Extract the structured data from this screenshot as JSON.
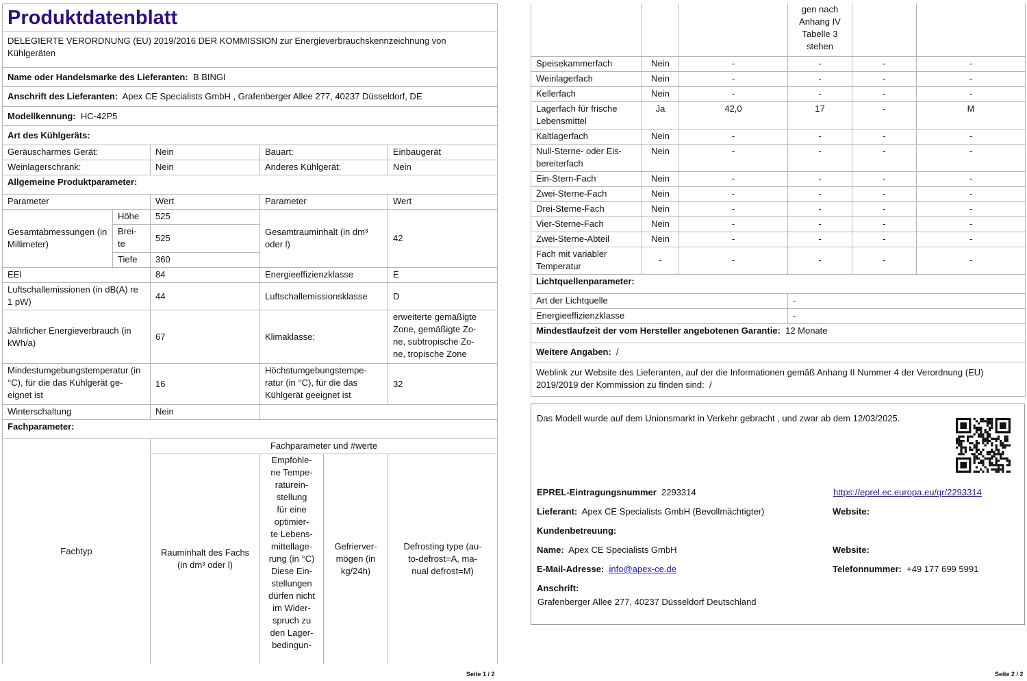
{
  "page1": {
    "title": "Produktdatenblatt",
    "regulation": "DELEGIERTE VERORDNUNG (EU) 2019/2016 DER KOMMISSION zur Energieverbrauchskennzeichnung von Kühlgeräten",
    "supplier_name_label": "Name oder Handelsmarke des Lieferanten:",
    "supplier_name": "B BINGI",
    "supplier_address_label": "Anschrift des Lieferanten:",
    "supplier_address": "Apex CE Specialists GmbH , Grafenberger Allee 277, 40237 Düsseldorf, DE",
    "model_label": "Modellkennung:",
    "model": "HC-42P5",
    "type_heading": "Art des Kühlgeräts:",
    "type_rows": [
      {
        "l1": "Geräuscharmes Gerät:",
        "v1": "Nein",
        "l2": "Bauart:",
        "v2": "Einbaugerät"
      },
      {
        "l1": "Weinlagerschrank:",
        "v1": "Nein",
        "l2": "Anderes Kühlgerät:",
        "v2": "Nein"
      }
    ],
    "general_heading": "Allgemeine Produktparameter:",
    "col_parameter": "Parameter",
    "col_value": "Wert",
    "dimensions_label": "Gesamtabmessungen (in Millimeter)",
    "height_label": "Höhe",
    "height": "525",
    "width_label": "Brei-\nte",
    "width": "525",
    "depth_label": "Tiefe",
    "depth": "360",
    "volume_label": "Gesamtrauminhalt (in dm³ oder l)",
    "volume": "42",
    "eei_label": "EEI",
    "eei": "84",
    "eec_label": "Energieeffizienzklasse",
    "eec": "E",
    "noise_label": "Luftschallemissionen (in dB(A) re 1 pW)",
    "noise": "44",
    "noise_class_label": "Luftschallemissionsklasse",
    "noise_class": "D",
    "energy_label": "Jährlicher Energieverbrauch (in kWh/a)",
    "energy": "67",
    "climate_label": "Klimaklasse:",
    "climate": "erweiterte gemäßigte Zone, gemäßigte Zo-\nne, subtropische Zo-\nne, tropische Zone",
    "min_temp_label": "Mindestumgebungstemperatur (in °C), für die das Kühlgerät ge-\neignet ist",
    "min_temp": "16",
    "max_temp_label": "Höchstumgebungstempe-\nratur (in °C), für die das Kühlgerät geeignet ist",
    "max_temp": "32",
    "winter_label": "Winterschaltung",
    "winter": "Nein",
    "compartment_heading": "Fachparameter:",
    "compartment_group": "Fachparameter und #werte",
    "col_fachtyp": "Fachtyp",
    "col_volume": "Rauminhalt des Fachs (in dm³ oder l)",
    "col_temp": "Empfohle-\nne Tempe-\nraturein-\nstellung\nfür eine\noptimier-\nte Lebens-\nmittellage-\nrung (in °C)\nDiese Ein-\nstellungen\ndürfen nicht\nim Wider-\nspruch zu\nden Lager-\nbedingun-",
    "col_freeze": "Gefrierver-\nmögen (in kg/24h)",
    "col_defrost": "Defrosting type (au-\nto-defrost=A, ma-\nnual defrost=M)",
    "footer": "Seite 1 / 2"
  },
  "page2": {
    "header_continuation": "gen nach\nAnhang IV\nTabelle 3\nstehen",
    "compartments": [
      {
        "name": "Speisekammerfach",
        "present": "Nein",
        "volume": "-",
        "temp": "-",
        "freeze": "-",
        "defrost": "-"
      },
      {
        "name": "Weinlagerfach",
        "present": "Nein",
        "volume": "-",
        "temp": "-",
        "freeze": "-",
        "defrost": "-"
      },
      {
        "name": "Kellerfach",
        "present": "Nein",
        "volume": "-",
        "temp": "-",
        "freeze": "-",
        "defrost": "-"
      },
      {
        "name": "Lagerfach für frische Lebensmittel",
        "present": "Ja",
        "volume": "42,0",
        "temp": "17",
        "freeze": "-",
        "defrost": "M"
      },
      {
        "name": "Kaltlagerfach",
        "present": "Nein",
        "volume": "-",
        "temp": "-",
        "freeze": "-",
        "defrost": "-"
      },
      {
        "name": "Null-Sterne- oder Eis-\nbereiterfach",
        "present": "Nein",
        "volume": "-",
        "temp": "-",
        "freeze": "-",
        "defrost": "-"
      },
      {
        "name": "Ein-Stern-Fach",
        "present": "Nein",
        "volume": "-",
        "temp": "-",
        "freeze": "-",
        "defrost": "-"
      },
      {
        "name": "Zwei-Sterne-Fach",
        "present": "Nein",
        "volume": "-",
        "temp": "-",
        "freeze": "-",
        "defrost": "-"
      },
      {
        "name": "Drei-Sterne-Fach",
        "present": "Nein",
        "volume": "-",
        "temp": "-",
        "freeze": "-",
        "defrost": "-"
      },
      {
        "name": "Vier-Sterne-Fach",
        "present": "Nein",
        "volume": "-",
        "temp": "-",
        "freeze": "-",
        "defrost": "-"
      },
      {
        "name": "Zwei-Sterne-Abteil",
        "present": "Nein",
        "volume": "-",
        "temp": "-",
        "freeze": "-",
        "defrost": "-"
      },
      {
        "name": "Fach mit variabler Temperatur",
        "present": "-",
        "volume": "-",
        "temp": "-",
        "freeze": "-",
        "defrost": "-"
      }
    ],
    "light_heading": "Lichtquellenparameter:",
    "light_type_label": "Art der Lichtquelle",
    "light_type": "-",
    "light_eec_label": "Energieeffizienzklasse",
    "light_eec": "-",
    "warranty_label": "Mindestlaufzeit der vom Hersteller angebotenen Garantie:",
    "warranty": "12 Monate",
    "more_label": "Weitere Angaben:",
    "more": "/",
    "weblink_text": "Weblink zur Website des Lieferanten, auf der die Informationen gemäß Anhang II Nummer 4 der Verordnung (EU) 2019/2019 der Kommission zu finden sind:",
    "weblink": "/",
    "market_text": "Das Modell wurde auf dem Unionsmarkt in Verkehr gebracht , und zwar ab dem 12/03/2025.",
    "eprel_label": "EPREL-Eintragungsnummer",
    "eprel": "2293314",
    "eprel_url": "https://eprel.ec.europa.eu/qr/2293314",
    "supplier_label": "Lieferant:",
    "supplier": "Apex CE Specialists GmbH (Bevollmächtigter)",
    "website_label": "Website:",
    "support_label": "Kundenbetreuung:",
    "name_label": "Name:",
    "name": "Apex CE Specialists GmbH",
    "email_label": "E-Mail-Adresse:",
    "email": "info@apex-ce.de",
    "phone_label": "Telefonnummer:",
    "phone": "+49 177 699 5991",
    "address_label": "Anschrift:",
    "address": "Grafenberger Allee 277, 40237 Düsseldorf\nDeutschland",
    "footer": "Seite 2 / 2",
    "link_color": "#1a1aa6",
    "title_color": "#2e0f86"
  }
}
